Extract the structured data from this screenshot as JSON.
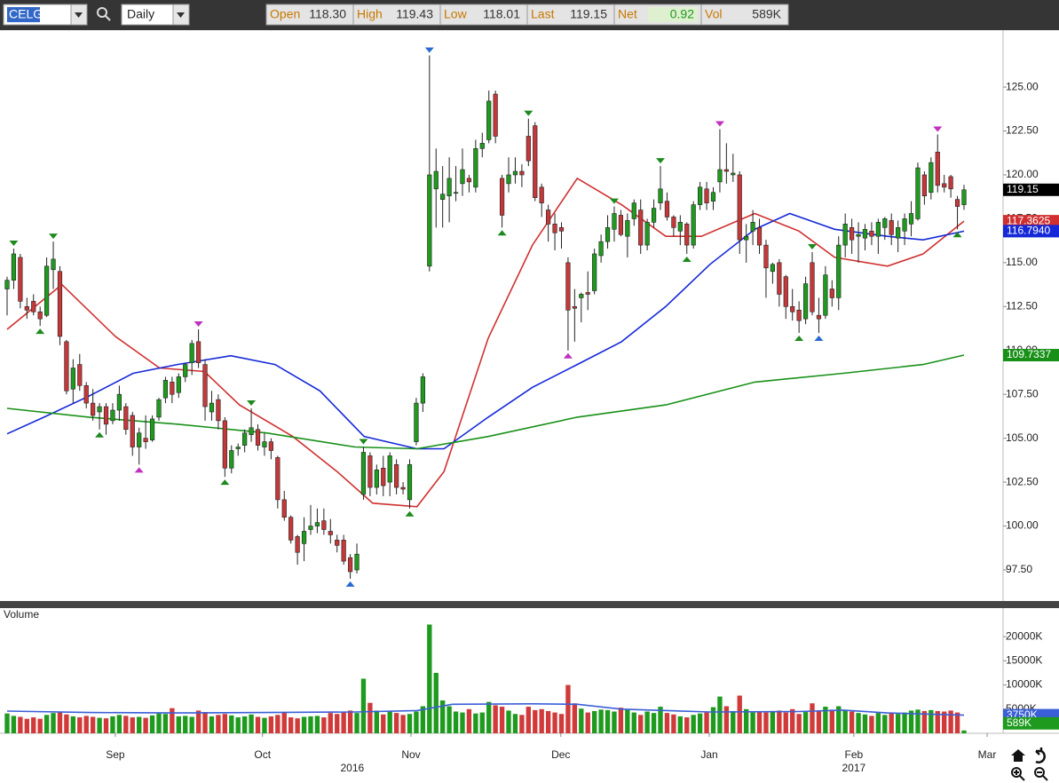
{
  "header": {
    "symbol": "CELG",
    "interval": "Daily",
    "fields": [
      {
        "label": "Open",
        "value": "118.30"
      },
      {
        "label": "High",
        "value": "119.43"
      },
      {
        "label": "Low",
        "value": "118.01"
      },
      {
        "label": "Last",
        "value": "119.15"
      },
      {
        "label": "Net",
        "value": "0.92"
      },
      {
        "label": "Vol",
        "value": "589K"
      }
    ]
  },
  "chart_data": [
    {
      "type": "candlestick",
      "ylim": [
        95.73,
        128.24
      ],
      "yticks": [
        {
          "value": 97.5,
          "label": "97.50"
        },
        {
          "value": 100,
          "label": "100.00"
        },
        {
          "value": 102.5,
          "label": "102.50"
        },
        {
          "value": 105,
          "label": "105.00"
        },
        {
          "value": 107.5,
          "label": "107.50"
        },
        {
          "value": 110,
          "label": "110.00"
        },
        {
          "value": 112.5,
          "label": "112.50"
        },
        {
          "value": 115,
          "label": "115.00"
        },
        {
          "value": 117.5,
          "label": "117.50"
        },
        {
          "value": 120,
          "label": "120.00"
        },
        {
          "value": 122.5,
          "label": "122.50"
        },
        {
          "value": 125,
          "label": "125.00"
        }
      ],
      "grid": false,
      "up_color": "#1e9a1e",
      "down_color": "#c4383a",
      "open": [
        113.5,
        114,
        115.3,
        112.5,
        112.8,
        112.2,
        112,
        114.6,
        114.5,
        110.5,
        107.8,
        109.2,
        108,
        107,
        106.5,
        106.8,
        106,
        106.6,
        106.8,
        106.3,
        104.5,
        105,
        104.9,
        106.2,
        107.3,
        108.2,
        107.6,
        108.5,
        109.3,
        110.5,
        109.2,
        106.5,
        107.2,
        106,
        103.3,
        104.4,
        104.6,
        105.2,
        105.5,
        104.5,
        104.8,
        103.9,
        101.5,
        100.5,
        99.4,
        99,
        99.8,
        100,
        100.3,
        99.7,
        99.2,
        99.2,
        98.2,
        97.5,
        101.8,
        104,
        102.2,
        103.3,
        102.5,
        103.5,
        102.2,
        101.5,
        104.8,
        107,
        114.8,
        119.2,
        118.6,
        118.8,
        119,
        119.5,
        119.8,
        119.3,
        121.5,
        122,
        124.6,
        119.8,
        119.5,
        120,
        120.2,
        122.2,
        122.8,
        119.3,
        118,
        117.2,
        117,
        115,
        112.5,
        113,
        113.3,
        113.4,
        115.4,
        116.2,
        116.9,
        117.7,
        116.5,
        117.5,
        118,
        116,
        117.3,
        118.4,
        118.5,
        117.6,
        116.8,
        117.2,
        116,
        118.3,
        119.2,
        118.5,
        119.6,
        120.3,
        120,
        120,
        116.3,
        116.8,
        117,
        116,
        114.5,
        115,
        114.2,
        112.5,
        112.3,
        111.8,
        115,
        112,
        112,
        113.5,
        113,
        116,
        117,
        116.5,
        116.4,
        116.8,
        116.5,
        117,
        117.4,
        116.4,
        116.8,
        117.2,
        117.5,
        120,
        119,
        121.3,
        119.5,
        119.9,
        118.6,
        118.3
      ],
      "high": [
        114.2,
        115.8,
        115.5,
        113,
        113.2,
        112.5,
        115.3,
        116.2,
        114.8,
        110.6,
        109.5,
        109.8,
        108.2,
        107.8,
        107,
        107,
        107,
        108,
        107,
        106.5,
        105.6,
        106.3,
        106.3,
        107.3,
        108.5,
        108.5,
        108.7,
        109.3,
        110.6,
        111.2,
        109.5,
        107.7,
        107.5,
        106.2,
        104.6,
        104.7,
        105.5,
        106.7,
        105.8,
        105.3,
        105,
        104,
        102,
        100.6,
        99.5,
        100.5,
        101.2,
        101,
        101,
        100.4,
        99.5,
        99.5,
        98.4,
        99,
        104.5,
        104.2,
        103.5,
        104,
        104.2,
        103.8,
        102.5,
        103.8,
        107.3,
        108.7,
        126.8,
        121.5,
        120.5,
        121,
        120.5,
        121.5,
        120,
        122,
        122.4,
        124.8,
        124.8,
        120,
        121,
        121,
        120.6,
        123.2,
        123,
        119.5,
        118.3,
        117.8,
        117.3,
        115.3,
        113.5,
        113.3,
        114.5,
        115.8,
        116.6,
        117.7,
        118.2,
        118,
        117.8,
        118.6,
        118.6,
        117.5,
        118.6,
        120.5,
        119,
        117.7,
        117.7,
        117.3,
        118.5,
        119.6,
        119.6,
        119.3,
        122.6,
        121.8,
        121.2,
        120.2,
        117.2,
        118,
        117.5,
        116.3,
        115,
        115.2,
        114.3,
        113.5,
        112.8,
        114.2,
        115.6,
        113,
        114.8,
        114,
        116.5,
        117.8,
        117.5,
        117.3,
        117.2,
        117.3,
        117.5,
        117.6,
        117.8,
        117.4,
        117.8,
        118.5,
        120.7,
        120.2,
        121,
        122.3,
        120,
        120,
        118.8,
        119.43
      ],
      "low": [
        112,
        113.5,
        112.4,
        111.8,
        112,
        111.4,
        111.9,
        113.5,
        110.3,
        107.5,
        107,
        107.7,
        106.7,
        106,
        105.5,
        105.2,
        105.8,
        106,
        105.2,
        104,
        103.5,
        104.4,
        104.8,
        106,
        107,
        107,
        107.3,
        108.2,
        108.6,
        109,
        106,
        106,
        105.5,
        102.8,
        103,
        104,
        104.2,
        104.8,
        104.3,
        104,
        103.8,
        101,
        100.3,
        99,
        97.8,
        98,
        99.5,
        99.6,
        99.5,
        99,
        98.5,
        97.8,
        97,
        97.3,
        101.5,
        101.7,
        101.8,
        101.7,
        101.7,
        101.8,
        101.8,
        101,
        104.6,
        106.5,
        114.5,
        117,
        117,
        117.3,
        118.5,
        118.8,
        119,
        119,
        121,
        121.8,
        121.8,
        117,
        119,
        119.5,
        119.3,
        120.5,
        118.5,
        117.6,
        116.2,
        115.7,
        115.8,
        110,
        110.5,
        111.6,
        112.3,
        113.2,
        115,
        115.8,
        116.2,
        116.5,
        115.3,
        117.1,
        115.5,
        115.7,
        117,
        118,
        117.4,
        116.5,
        116,
        115.5,
        115.8,
        118,
        118,
        118,
        119,
        119.5,
        119.6,
        115.5,
        115,
        116,
        115.5,
        113,
        113.8,
        112.5,
        111.8,
        111.7,
        111,
        111.5,
        112,
        111,
        111.8,
        112.5,
        112.3,
        115.3,
        115.5,
        115,
        115.7,
        116,
        115.5,
        116.3,
        116,
        115.6,
        116,
        116.5,
        117.4,
        118.3,
        118.6,
        119,
        119,
        118.7,
        116.9,
        118.01
      ],
      "close": [
        114,
        115.5,
        112.8,
        112.3,
        112.2,
        111.8,
        114.8,
        115.2,
        110.8,
        107.7,
        109,
        108,
        107,
        106.3,
        106.8,
        105.8,
        106.6,
        107.5,
        105.5,
        104.5,
        105.3,
        104.8,
        106.1,
        107.2,
        108.3,
        107.5,
        108.5,
        109.2,
        110.4,
        109.3,
        106.8,
        107,
        106,
        103.3,
        104.3,
        104.5,
        105.3,
        105.6,
        104.6,
        104.8,
        104.3,
        101.5,
        100.5,
        99.2,
        98.5,
        99.7,
        100,
        100.2,
        99.8,
        99.5,
        98.9,
        98,
        97.4,
        98.4,
        104.2,
        102.2,
        103.2,
        102.3,
        104,
        102.2,
        102.1,
        103.5,
        107,
        108.5,
        120,
        120.2,
        118.9,
        119.8,
        119,
        120.3,
        119.6,
        121.5,
        121.8,
        124.2,
        122.2,
        117.7,
        120,
        120.2,
        120,
        120.8,
        118.7,
        118.4,
        117.2,
        116.7,
        116.8,
        112.3,
        112.4,
        113.2,
        113.2,
        115.5,
        116.2,
        117,
        117.8,
        116.6,
        117.4,
        118.4,
        116,
        117.3,
        118.1,
        119.2,
        117.6,
        117,
        117.3,
        116,
        118.3,
        119.3,
        118.4,
        119,
        120.3,
        120.2,
        120.1,
        116.3,
        116.5,
        117.3,
        116,
        114.7,
        114.9,
        113.2,
        112.5,
        112.2,
        111.7,
        113.8,
        112.2,
        111.8,
        114.3,
        113,
        116,
        117.2,
        116.3,
        116.6,
        116.9,
        116.5,
        117.3,
        117.5,
        116.6,
        117,
        117.5,
        117.8,
        120.4,
        118.8,
        120.7,
        119.4,
        119.3,
        119.2,
        118.2,
        119.15
      ],
      "lines": [
        {
          "color": "#d03030",
          "x": [
            0,
            8.3,
            16.4,
            23.1,
            29.9,
            35.2,
            43.3,
            50,
            55.4,
            62.1,
            66.2,
            72.9,
            79.6,
            86.4,
            93.1,
            99.8,
            105.2,
            113.3,
            120,
            125.4,
            133.4,
            138.8,
            145
          ],
          "values": [
            111.2,
            113.75,
            110.8,
            109,
            108.8,
            106.9,
            105.1,
            103.1,
            101.3,
            101.1,
            103.1,
            110.7,
            116,
            119.8,
            118.3,
            116.5,
            116.5,
            117.8,
            116.8,
            115.3,
            114.8,
            115.5,
            117.3625
          ],
          "last_label": "117.3625"
        },
        {
          "color": "#1428d8",
          "x": [
            0,
            5.6,
            12.4,
            19.1,
            25.8,
            33.9,
            40.6,
            47.4,
            54.1,
            62.1,
            66.2,
            72.9,
            79.6,
            86.4,
            93.1,
            99.8,
            106.5,
            113.3,
            118.6,
            125.4,
            133.4,
            138.8,
            145
          ],
          "values": [
            105.25,
            106.2,
            107.4,
            108.7,
            109.2,
            109.7,
            109.2,
            107.7,
            105.1,
            104.4,
            104.4,
            106.2,
            107.9,
            109.2,
            110.5,
            112.5,
            114.9,
            116.9,
            117.8,
            116.9,
            116.5,
            116.3,
            116.794
          ],
          "last_label": "116.7940"
        },
        {
          "color": "#189018",
          "x": [
            0,
            12.4,
            25.8,
            39.3,
            52.7,
            62.1,
            72.9,
            86.4,
            99.8,
            113.3,
            126.7,
            138.8,
            145
          ],
          "values": [
            106.7,
            106.2,
            105.8,
            105.3,
            104.5,
            104.4,
            105.1,
            106.2,
            106.9,
            108.2,
            108.7,
            109.2,
            109.7337
          ],
          "last_label": "109.7337"
        }
      ],
      "markers": [
        {
          "at": 1,
          "side": "high",
          "color": "#1e8a1e"
        },
        {
          "at": 7,
          "side": "high",
          "color": "#1e8a1e"
        },
        {
          "at": 37,
          "side": "high",
          "color": "#1e8a1e"
        },
        {
          "at": 54,
          "side": "high",
          "color": "#1e8a1e"
        },
        {
          "at": 79,
          "side": "high",
          "color": "#1e8a1e"
        },
        {
          "at": 92,
          "side": "high",
          "color": "#1e8a1e"
        },
        {
          "at": 99,
          "side": "high",
          "color": "#1e8a1e"
        },
        {
          "at": 122,
          "side": "high",
          "color": "#1e8a1e"
        },
        {
          "at": 5,
          "side": "low",
          "color": "#1e8a1e"
        },
        {
          "at": 14,
          "side": "low",
          "color": "#1e8a1e"
        },
        {
          "at": 33,
          "side": "low",
          "color": "#1e8a1e"
        },
        {
          "at": 61,
          "side": "low",
          "color": "#1e8a1e"
        },
        {
          "at": 75,
          "side": "low",
          "color": "#1e8a1e"
        },
        {
          "at": 103,
          "side": "low",
          "color": "#1e8a1e"
        },
        {
          "at": 120,
          "side": "low",
          "color": "#1e8a1e"
        },
        {
          "at": 144,
          "side": "low",
          "color": "#1e8a1e"
        },
        {
          "at": 29,
          "side": "high",
          "color": "#c030c0"
        },
        {
          "at": 108,
          "side": "high",
          "color": "#c030c0"
        },
        {
          "at": 141,
          "side": "high",
          "color": "#c030c0"
        },
        {
          "at": 20,
          "side": "low",
          "color": "#c030c0"
        },
        {
          "at": 85,
          "side": "low",
          "color": "#c030c0"
        },
        {
          "at": 64,
          "side": "high",
          "color": "#2a6ad0"
        },
        {
          "at": 52,
          "side": "low",
          "color": "#2a6ad0"
        },
        {
          "at": 123,
          "side": "low",
          "color": "#2a6ad0"
        }
      ]
    },
    {
      "type": "bar",
      "title": "Volume",
      "ylim": [
        0,
        25900
      ],
      "yticks": [
        {
          "value": 5000,
          "label": "5000K"
        },
        {
          "value": 10000,
          "label": "10000K"
        },
        {
          "value": 15000,
          "label": "15000K"
        },
        {
          "value": 20000,
          "label": "20000K"
        }
      ],
      "values": [
        4100,
        3600,
        3400,
        3000,
        3300,
        3000,
        3800,
        4200,
        4400,
        3900,
        3500,
        3300,
        3600,
        3400,
        3200,
        3100,
        3500,
        3800,
        3600,
        3300,
        3400,
        3200,
        3700,
        4100,
        4000,
        5200,
        3500,
        3600,
        3400,
        4700,
        4400,
        3500,
        3800,
        4000,
        3700,
        3300,
        3500,
        3900,
        3400,
        3200,
        3500,
        3800,
        4400,
        3300,
        3100,
        3400,
        3500,
        3600,
        3300,
        4200,
        4000,
        4400,
        4700,
        4200,
        11300,
        6300,
        4700,
        3900,
        4500,
        4200,
        3800,
        4000,
        4500,
        5600,
        22500,
        12500,
        6800,
        5600,
        4500,
        4300,
        5000,
        4100,
        4300,
        6500,
        5800,
        5500,
        4700,
        4000,
        3800,
        5500,
        4800,
        5000,
        4600,
        4300,
        4000,
        10000,
        6200,
        5100,
        4300,
        4600,
        4900,
        4800,
        4500,
        5300,
        5000,
        4300,
        3800,
        4500,
        4200,
        5500,
        4200,
        3900,
        3500,
        3300,
        3800,
        4100,
        4300,
        5400,
        7600,
        5600,
        4600,
        7800,
        5000,
        4300,
        4500,
        4300,
        4600,
        4700,
        4300,
        5000,
        4000,
        4400,
        6200,
        4600,
        5500,
        4900,
        5600,
        4800,
        4500,
        4200,
        3900,
        3600,
        4200,
        3800,
        4300,
        4000,
        4300,
        4700,
        4900,
        4600,
        4800,
        4600,
        4500,
        4700,
        4300,
        589
      ],
      "last_label": "589K",
      "line": {
        "color": "#3a5fd8",
        "x": [
          0,
          12.4,
          25.8,
          39.3,
          52.7,
          62.1,
          67.5,
          79.6,
          86.4,
          93.1,
          106.5,
          120,
          126.7,
          133.4,
          145
        ],
        "values": [
          4600,
          4300,
          4200,
          4300,
          4400,
          4700,
          6000,
          6100,
          6000,
          5000,
          4400,
          4500,
          4800,
          4200,
          3750
        ],
        "last_label": "3750K"
      },
      "xticks": [
        {
          "value": 16.4,
          "label": "Sep"
        },
        {
          "value": 38.7,
          "label": "Oct"
        },
        {
          "value": 61.2,
          "label": "Nov"
        },
        {
          "value": 83.9,
          "label": "Dec"
        },
        {
          "value": 106.4,
          "label": "Jan"
        },
        {
          "value": 128.3,
          "label": "Feb"
        },
        {
          "value": 148.5,
          "label": "Mar"
        }
      ],
      "year_ticks": [
        {
          "value": 52.3,
          "label": "2016"
        },
        {
          "value": 128.3,
          "label": "2017"
        }
      ]
    }
  ]
}
